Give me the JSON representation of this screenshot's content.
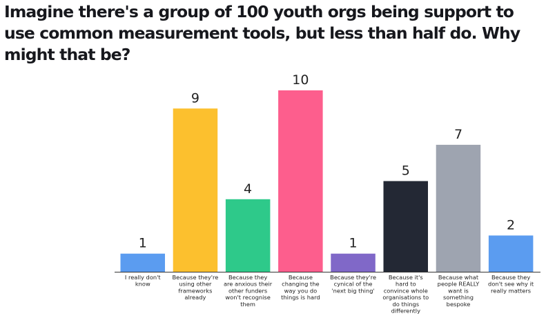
{
  "chart_data": {
    "type": "bar",
    "title": "Imagine there's a group of 100 youth orgs being support to use common measurement tools, but less than half do. Why might that be?",
    "categories": [
      [
        "I really don't",
        "know"
      ],
      [
        "Because they're",
        "using other",
        "frameworks",
        "already"
      ],
      [
        "Because they",
        "are anxious their",
        "other funders",
        "won't recognise",
        "them"
      ],
      [
        "Because",
        "changing the",
        "way you do",
        "things is hard"
      ],
      [
        "Because they're",
        "cynical of the",
        "'next big thing'"
      ],
      [
        "Because it's",
        "hard to",
        "convince whole",
        "organisations to",
        "do things",
        "differently"
      ],
      [
        "Because what",
        "people REALLY",
        "want is",
        "something",
        "bespoke"
      ],
      [
        "Because they",
        "don't see why it",
        "really matters"
      ]
    ],
    "values": [
      1,
      9,
      4,
      10,
      1,
      5,
      7,
      2
    ],
    "colors": [
      "#5b9cf0",
      "#fcc02e",
      "#2ec98a",
      "#fd5e8d",
      "#8068c8",
      "#232834",
      "#9ea4b0",
      "#5b9cf0"
    ],
    "ylim": [
      0,
      10
    ]
  }
}
